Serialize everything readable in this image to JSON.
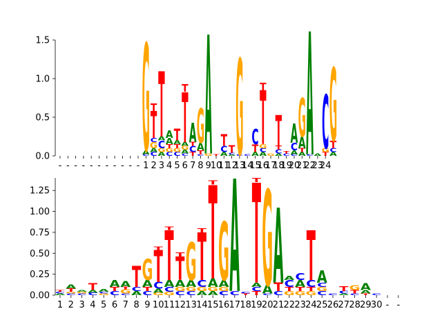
{
  "colors": {
    "A": "#008000",
    "C": "#0000ff",
    "G": "#ffa500",
    "T": "#ff0000"
  },
  "chart_data": [
    {
      "type": "sequence-logo",
      "ylim": [
        0,
        1.5
      ],
      "yticks": [
        0.0,
        0.5,
        1.0,
        1.5
      ],
      "ytick_labels": [
        "0.0",
        "0.5",
        "1.0",
        "1.5"
      ],
      "xtick_labels": [
        "-",
        "-",
        "-",
        "-",
        "-",
        "-",
        "-",
        "-",
        "-",
        "-",
        "-",
        "1",
        "2",
        "3",
        "4",
        "5",
        "6",
        "7",
        "8",
        "9",
        "10",
        "11",
        "12",
        "13",
        "14",
        "15",
        "16",
        "17",
        "18",
        "19",
        "20",
        "21",
        "22",
        "23",
        "24"
      ],
      "columns": [
        [],
        [],
        [],
        [],
        [],
        [],
        [],
        [],
        [],
        [],
        [],
        [
          [
            "C",
            0.02
          ],
          [
            "A",
            0.05
          ],
          [
            "G",
            1.4
          ]
        ],
        [
          [
            "C",
            0.05
          ],
          [
            "A",
            0.05
          ],
          [
            "G",
            0.08
          ],
          [
            "C",
            0.05
          ],
          [
            "T",
            0.35
          ],
          [
            "T",
            0.1
          ]
        ],
        [
          [
            "A",
            0.05
          ],
          [
            "G",
            0.05
          ],
          [
            "C",
            0.1
          ],
          [
            "A",
            0.05
          ],
          [
            "T",
            0.85
          ]
        ],
        [
          [
            "C",
            0.05
          ],
          [
            "G",
            0.05
          ],
          [
            "T",
            0.05
          ],
          [
            "A",
            0.08
          ],
          [
            "A",
            0.1
          ]
        ],
        [
          [
            "C",
            0.05
          ],
          [
            "G",
            0.05
          ],
          [
            "T",
            0.05
          ],
          [
            "A",
            0.05
          ],
          [
            "T",
            0.15
          ]
        ],
        [
          [
            "C",
            0.03
          ],
          [
            "A",
            0.05
          ],
          [
            "G",
            0.05
          ],
          [
            "A",
            0.05
          ],
          [
            "T",
            0.65
          ],
          [
            "T",
            0.1
          ]
        ],
        [
          [
            "T",
            0.05
          ],
          [
            "C",
            0.08
          ],
          [
            "T",
            0.05
          ],
          [
            "A",
            0.25
          ]
        ],
        [
          [
            "C",
            0.02
          ],
          [
            "T",
            0.05
          ],
          [
            "A",
            0.1
          ],
          [
            "G",
            0.45
          ]
        ],
        [
          [
            "G",
            0.03
          ],
          [
            "A",
            1.55
          ]
        ],
        [
          [
            "T",
            0.02
          ]
        ],
        [
          [
            "A",
            0.05
          ],
          [
            "C",
            0.08
          ],
          [
            "T",
            0.15
          ]
        ],
        [
          [
            "A",
            0.02
          ],
          [
            "C",
            0.02
          ],
          [
            "T",
            0.1
          ]
        ],
        [
          [
            "C",
            0.02
          ],
          [
            "G",
            1.25
          ]
        ],
        [
          [
            "C",
            0.02
          ]
        ],
        [
          [
            "A",
            0.05
          ],
          [
            "T",
            0.1
          ],
          [
            "C",
            0.2
          ]
        ],
        [
          [
            "A",
            0.05
          ],
          [
            "C",
            0.05
          ],
          [
            "G",
            0.05
          ],
          [
            "T",
            0.7
          ],
          [
            "T",
            0.1
          ]
        ],
        [
          [
            "G",
            0.03
          ]
        ],
        [
          [
            "A",
            0.03
          ],
          [
            "C",
            0.05
          ],
          [
            "T",
            0.05
          ],
          [
            "T",
            0.4
          ]
        ],
        [
          [
            "C",
            0.03
          ],
          [
            "T",
            0.03
          ]
        ],
        [
          [
            "C",
            0.02
          ],
          [
            "A",
            0.05
          ],
          [
            "C",
            0.1
          ],
          [
            "A",
            0.25
          ]
        ],
        [
          [
            "A",
            0.05
          ],
          [
            "T",
            0.05
          ],
          [
            "A",
            0.15
          ],
          [
            "G",
            0.5
          ]
        ],
        [
          [
            "C",
            0.02
          ],
          [
            "A",
            1.6
          ]
        ],
        [
          [
            "A",
            0.03
          ]
        ],
        [
          [
            "T",
            0.05
          ],
          [
            "G",
            0.05
          ],
          [
            "C",
            0.7
          ]
        ],
        [
          [
            "A",
            0.05
          ],
          [
            "C",
            0.05
          ],
          [
            "T",
            0.1
          ],
          [
            "G",
            0.95
          ]
        ]
      ]
    },
    {
      "type": "sequence-logo",
      "ylim": [
        0,
        1.4
      ],
      "yticks": [
        0.0,
        0.25,
        0.5,
        0.75,
        1.0,
        1.25
      ],
      "ytick_labels": [
        "0.00",
        "0.25",
        "0.50",
        "0.75",
        "1.00",
        "1.25"
      ],
      "xtick_labels": [
        "1",
        "2",
        "3",
        "4",
        "5",
        "6",
        "7",
        "8",
        "9",
        "10",
        "11",
        "12",
        "13",
        "14",
        "15",
        "16",
        "17",
        "18",
        "19",
        "20",
        "21",
        "22",
        "23",
        "24",
        "25",
        "26",
        "27",
        "28",
        "29",
        "30",
        "-",
        "-"
      ],
      "columns": [
        [
          [
            "A",
            0.02
          ],
          [
            "C",
            0.02
          ],
          [
            "T",
            0.02
          ]
        ],
        [
          [
            "C",
            0.02
          ],
          [
            "G",
            0.02
          ],
          [
            "T",
            0.04
          ],
          [
            "A",
            0.05
          ]
        ],
        [
          [
            "C",
            0.02
          ],
          [
            "G",
            0.02
          ],
          [
            "A",
            0.02
          ]
        ],
        [
          [
            "C",
            0.03
          ],
          [
            "A",
            0.03
          ],
          [
            "T",
            0.08
          ]
        ],
        [
          [
            "G",
            0.02
          ],
          [
            "C",
            0.02
          ],
          [
            "A",
            0.03
          ]
        ],
        [
          [
            "C",
            0.05
          ],
          [
            "T",
            0.05
          ],
          [
            "A",
            0.08
          ]
        ],
        [
          [
            "C",
            0.02
          ],
          [
            "G",
            0.05
          ],
          [
            "T",
            0.03
          ],
          [
            "A",
            0.07
          ]
        ],
        [
          [
            "A",
            0.05
          ],
          [
            "C",
            0.05
          ],
          [
            "T",
            0.25
          ]
        ],
        [
          [
            "C",
            0.05
          ],
          [
            "T",
            0.05
          ],
          [
            "A",
            0.08
          ],
          [
            "G",
            0.25
          ]
        ],
        [
          [
            "G",
            0.03
          ],
          [
            "A",
            0.05
          ],
          [
            "C",
            0.08
          ],
          [
            "T",
            0.38
          ],
          [
            "T",
            0.04
          ]
        ],
        [
          [
            "G",
            0.04
          ],
          [
            "C",
            0.06
          ],
          [
            "A",
            0.08
          ],
          [
            "T",
            0.6
          ],
          [
            "T",
            0.04
          ]
        ],
        [
          [
            "C",
            0.05
          ],
          [
            "G",
            0.05
          ],
          [
            "A",
            0.08
          ],
          [
            "T",
            0.28
          ],
          [
            "T",
            0.05
          ]
        ],
        [
          [
            "C",
            0.05
          ],
          [
            "G",
            0.05
          ],
          [
            "A",
            0.08
          ],
          [
            "G",
            0.45
          ]
        ],
        [
          [
            "A",
            0.05
          ],
          [
            "G",
            0.05
          ],
          [
            "C",
            0.08
          ],
          [
            "T",
            0.57
          ],
          [
            "T",
            0.05
          ]
        ],
        [
          [
            "A",
            0.05
          ],
          [
            "G",
            0.05
          ],
          [
            "A",
            0.1
          ],
          [
            "T",
            1.12
          ],
          [
            "T",
            0.05
          ]
        ],
        [
          [
            "C",
            0.05
          ],
          [
            "G",
            0.05
          ],
          [
            "A",
            0.08
          ],
          [
            "G",
            0.7
          ]
        ],
        [
          [
            "C",
            0.05
          ],
          [
            "A",
            1.35
          ]
        ],
        [
          [
            "T",
            0.02
          ],
          [
            "C",
            0.02
          ]
        ],
        [
          [
            "T",
            0.05
          ],
          [
            "C",
            0.05
          ],
          [
            "A",
            0.05
          ],
          [
            "T",
            1.2
          ],
          [
            "T",
            0.05
          ]
        ],
        [
          [
            "C",
            0.02
          ],
          [
            "A",
            0.1
          ],
          [
            "G",
            1.15
          ]
        ],
        [
          [
            "C",
            0.05
          ],
          [
            "T",
            0.1
          ],
          [
            "A",
            0.9
          ]
        ],
        [
          [
            "G",
            0.05
          ],
          [
            "T",
            0.05
          ],
          [
            "C",
            0.08
          ],
          [
            "A",
            0.05
          ]
        ],
        [
          [
            "G",
            0.05
          ],
          [
            "T",
            0.05
          ],
          [
            "A",
            0.08
          ],
          [
            "C",
            0.08
          ]
        ],
        [
          [
            "G",
            0.05
          ],
          [
            "T",
            0.05
          ],
          [
            "C",
            0.08
          ],
          [
            "T",
            0.6
          ]
        ],
        [
          [
            "C",
            0.05
          ],
          [
            "G",
            0.05
          ],
          [
            "C",
            0.05
          ],
          [
            "A",
            0.15
          ]
        ],
        [
          [
            "C",
            0.02
          ]
        ],
        [
          [
            "A",
            0.02
          ],
          [
            "C",
            0.03
          ],
          [
            "T",
            0.06
          ]
        ],
        [
          [
            "C",
            0.02
          ],
          [
            "T",
            0.04
          ],
          [
            "G",
            0.06
          ]
        ],
        [
          [
            "T",
            0.02
          ],
          [
            "A",
            0.04
          ],
          [
            "A",
            0.08
          ]
        ],
        [
          [
            "C",
            0.02
          ]
        ],
        [],
        []
      ]
    }
  ]
}
